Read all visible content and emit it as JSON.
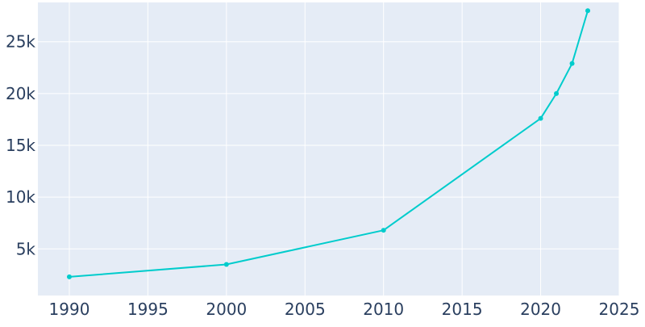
{
  "chart_data": {
    "type": "line",
    "title": "",
    "xlabel": "",
    "ylabel": "",
    "x": [
      1990,
      2000,
      2010,
      2020,
      2021,
      2022,
      2023
    ],
    "series": [
      {
        "values": [
          2300,
          3500,
          6800,
          17600,
          20000,
          22900,
          28000
        ],
        "color": "#00cccc",
        "markers": true
      }
    ],
    "xlim": [
      1988,
      2025
    ],
    "ylim": [
      500,
      28800
    ],
    "xticks": [
      1990,
      1995,
      2000,
      2005,
      2010,
      2015,
      2020,
      2025
    ],
    "xtick_labels": [
      "1990",
      "1995",
      "2000",
      "2005",
      "2010",
      "2015",
      "2020",
      "2025"
    ],
    "yticks": [
      5000,
      10000,
      15000,
      20000,
      25000
    ],
    "ytick_labels": [
      "5k",
      "10k",
      "15k",
      "20k",
      "25k"
    ],
    "grid": true,
    "plot_background": "#e5ecf6",
    "grid_color": "#ffffff",
    "text_color": "#2a3f5f",
    "legend": false
  }
}
